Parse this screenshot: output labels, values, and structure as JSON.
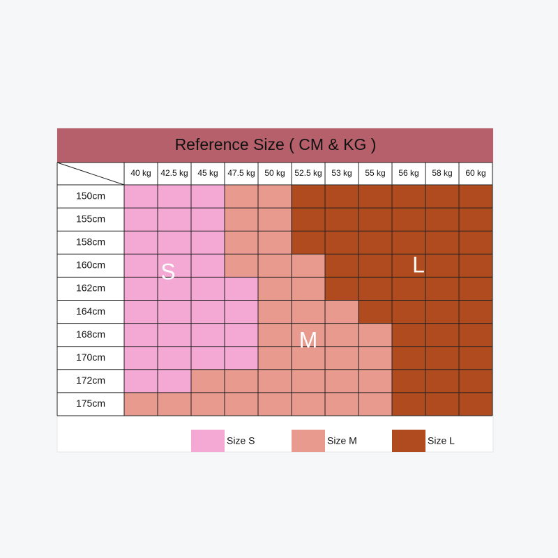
{
  "title": "Reference Size ( CM & KG )",
  "weights": [
    "40 kg",
    "42.5 kg",
    "45 kg",
    "47.5 kg",
    "50 kg",
    "52.5 kg",
    "53 kg",
    "55 kg",
    "56 kg",
    "58 kg",
    "60 kg"
  ],
  "heights": [
    "150cm",
    "155cm",
    "158cm",
    "160cm",
    "162cm",
    "164cm",
    "168cm",
    "170cm",
    "172cm",
    "175cm"
  ],
  "sizes": [
    {
      "label": "Size S",
      "letter": "S",
      "color": "#f4a8d4"
    },
    {
      "label": "Size M",
      "letter": "M",
      "color": "#e99a8e"
    },
    {
      "label": "Size L",
      "letter": "L",
      "color": "#b04a1f"
    }
  ],
  "grid": [
    [
      0,
      0,
      0,
      1,
      1,
      2,
      2,
      2,
      2,
      2,
      2
    ],
    [
      0,
      0,
      0,
      1,
      1,
      2,
      2,
      2,
      2,
      2,
      2
    ],
    [
      0,
      0,
      0,
      1,
      1,
      2,
      2,
      2,
      2,
      2,
      2
    ],
    [
      0,
      0,
      0,
      1,
      1,
      1,
      2,
      2,
      2,
      2,
      2
    ],
    [
      0,
      0,
      0,
      0,
      1,
      1,
      2,
      2,
      2,
      2,
      2
    ],
    [
      0,
      0,
      0,
      0,
      1,
      1,
      1,
      2,
      2,
      2,
      2
    ],
    [
      0,
      0,
      0,
      0,
      1,
      1,
      1,
      1,
      2,
      2,
      2
    ],
    [
      0,
      0,
      0,
      0,
      1,
      1,
      1,
      1,
      2,
      2,
      2
    ],
    [
      0,
      0,
      1,
      1,
      1,
      1,
      1,
      1,
      2,
      2,
      2
    ],
    [
      1,
      1,
      1,
      1,
      1,
      1,
      1,
      1,
      2,
      2,
      2
    ]
  ]
}
